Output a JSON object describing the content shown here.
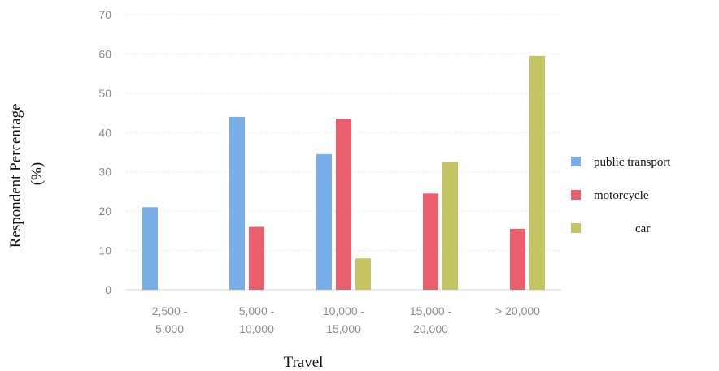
{
  "chart_data": {
    "type": "bar",
    "title": "",
    "xlabel": "Travel",
    "ylabel_line1": "Respondent Percentage",
    "ylabel_line2": "(%)",
    "ylim": [
      0,
      70
    ],
    "yticks": [
      0,
      10,
      20,
      30,
      40,
      50,
      60,
      70
    ],
    "categories": [
      [
        "2,500 -",
        "5,000"
      ],
      [
        "5,000 -",
        "10,000"
      ],
      [
        "10,000 -",
        "15,000"
      ],
      [
        "15,000 -",
        "20,000"
      ],
      [
        "> 20,000"
      ]
    ],
    "series": [
      {
        "name": "public transport",
        "color": "#7aaee8",
        "values": [
          21,
          44,
          34.5,
          0,
          0
        ]
      },
      {
        "name": "motorcycle",
        "color": "#ea5f6d",
        "values": [
          0,
          16,
          43.5,
          24.5,
          15.5
        ]
      },
      {
        "name": "car",
        "color": "#c5c463",
        "values": [
          0,
          0,
          8,
          32.5,
          59.5
        ]
      }
    ],
    "grid": true,
    "legend_position": "right"
  }
}
